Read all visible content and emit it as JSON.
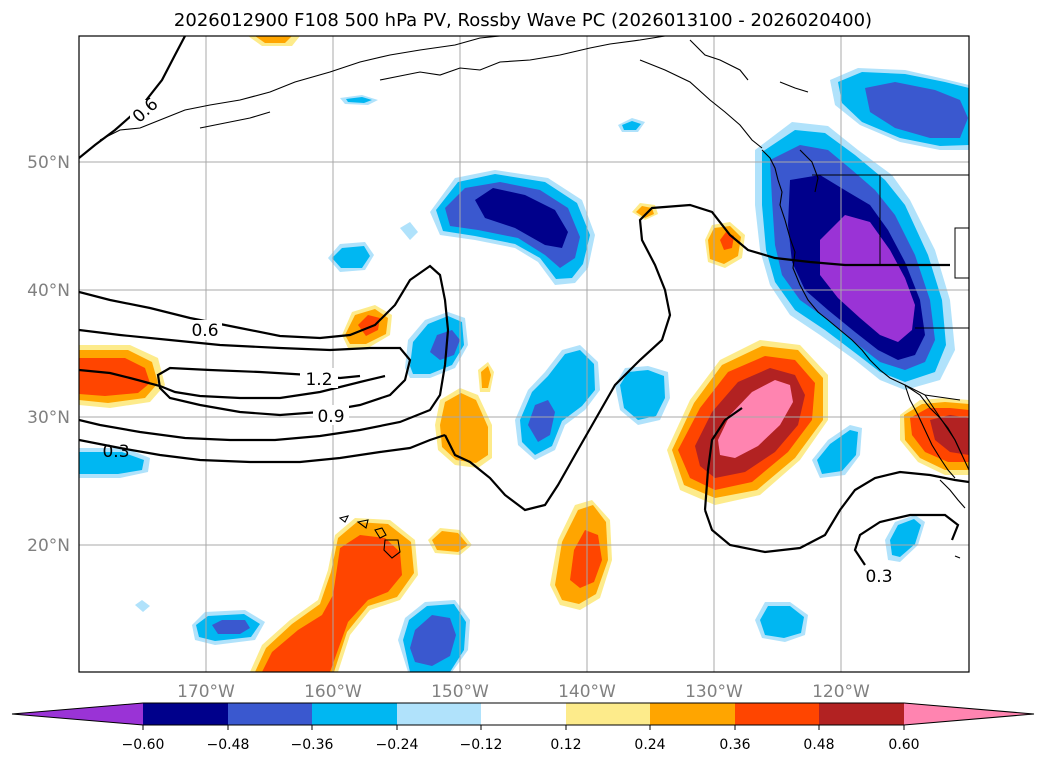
{
  "title": "2026012900 F108 500 hPa PV, Rossby Wave PC (2026013100 - 2026020400)",
  "colors": {
    "purple": "#9a33d6",
    "navy": "#00008b",
    "royal": "#3a58cf",
    "sky": "#00b7f2",
    "pale_blue": "#b0e2fb",
    "pale_yellow": "#fdeb8b",
    "orange": "#ffa500",
    "red_orange": "#ff4500",
    "dark_red": "#b22222",
    "pink": "#ff84b0",
    "gray_label": "#808080"
  },
  "chart_data": {
    "type": "map",
    "title": "2026012900 F108 500 hPa PV, Rossby Wave PC (2026013100 - 2026020400)",
    "lat_range": [
      10,
      60
    ],
    "lon_range": [
      -180,
      -110
    ],
    "latitude_labels": [
      "50°N",
      "40°N",
      "30°N",
      "20°N"
    ],
    "longitude_labels": [
      "170°W",
      "160°W",
      "150°W",
      "140°W",
      "130°W",
      "120°W"
    ],
    "colorbar": {
      "levels": [
        -0.6,
        -0.48,
        -0.36,
        -0.24,
        -0.12,
        0.12,
        0.24,
        0.36,
        0.48,
        0.6
      ],
      "tick_labels": [
        "−0.60",
        "−0.48",
        "−0.36",
        "−0.24",
        "−0.12",
        "0.12",
        "0.24",
        "0.36",
        "0.48",
        "0.60"
      ],
      "extend": "both"
    },
    "contour_labels": [
      "0.6",
      "0.6",
      "1.2",
      "0.9",
      "0.3",
      "0.3"
    ],
    "filled_anomalies": [
      {
        "lat": 54,
        "lon": -112,
        "value": -0.48
      },
      {
        "lat": 41,
        "lon": -118,
        "value": -0.6
      },
      {
        "lat": 46,
        "lon": -145,
        "value": -0.48
      },
      {
        "lat": 31.5,
        "lon": -127,
        "value": 0.6
      },
      {
        "lat": 28,
        "lon": -111,
        "value": 0.48
      },
      {
        "lat": 33,
        "lon": -178,
        "value": 0.36
      },
      {
        "lat": 18,
        "lon": -162,
        "value": 0.36
      },
      {
        "lat": 13,
        "lon": -150,
        "value": -0.36
      },
      {
        "lat": 19,
        "lon": -140,
        "value": 0.36
      }
    ]
  }
}
